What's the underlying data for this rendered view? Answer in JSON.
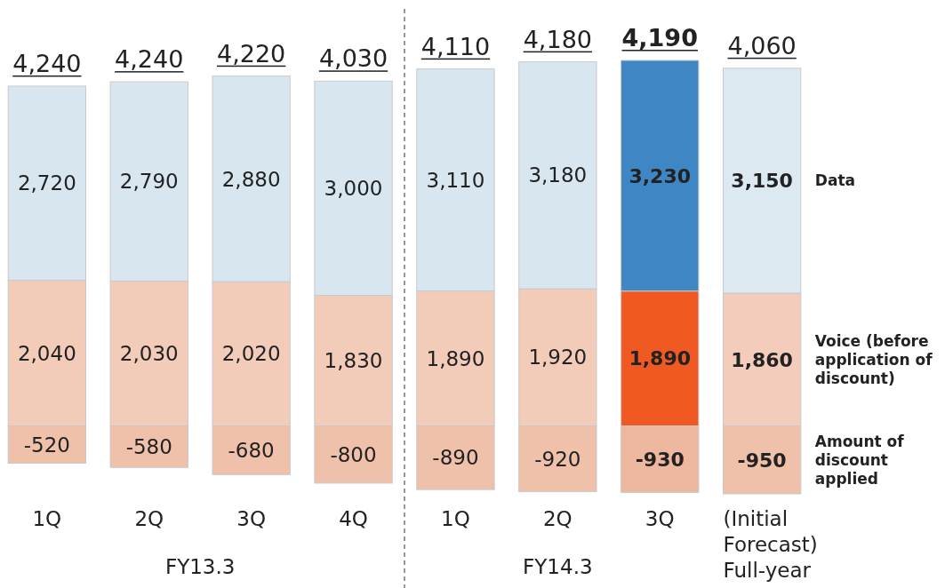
{
  "chart_data": {
    "type": "bar",
    "stacked": true,
    "legend": "right",
    "categories": [
      "1Q",
      "2Q",
      "3Q",
      "4Q",
      "1Q",
      "2Q",
      "3Q",
      "(Initial Forecast) Full-year"
    ],
    "series": [
      {
        "name": "Voice (before application of discount)",
        "colors": [
          "#f3cbb9",
          "#f3cbb9",
          "#f3cbb9",
          "#f3cbb9",
          "#f3cbb9",
          "#f3cbb9",
          "#f05a22",
          "#f4ccbb"
        ],
        "values": [
          2040,
          2030,
          2020,
          1830,
          1890,
          1920,
          1890,
          1860
        ],
        "value_labels": [
          "2,040",
          "2,030",
          "2,020",
          "1,830",
          "1,890",
          "1,920",
          "1,890",
          "1,860"
        ]
      },
      {
        "name": "Data",
        "colors": [
          "#d8e7ef",
          "#d8e7ef",
          "#d8e7ef",
          "#d8e7ef",
          "#d8e7ef",
          "#d8e7ef",
          "#3e86c4",
          "#dde9f1"
        ],
        "values": [
          2720,
          2790,
          2880,
          3000,
          3110,
          3180,
          3230,
          3150
        ],
        "value_labels": [
          "2,720",
          "2,790",
          "2,880",
          "3,000",
          "3,110",
          "3,180",
          "3,230",
          "3,150"
        ]
      },
      {
        "name": "Amount of discount applied",
        "colors": [
          "#efc0aa",
          "#efc0aa",
          "#efc0aa",
          "#efc0aa",
          "#efc0aa",
          "#efc0aa",
          "#eeb79f",
          "#efc1ab"
        ],
        "values": [
          -520,
          -580,
          -680,
          -800,
          -890,
          -920,
          -930,
          -950
        ],
        "value_labels": [
          "-520",
          "-580",
          "-680",
          "-800",
          "-890",
          "-920",
          "-930",
          "-950"
        ]
      }
    ],
    "totals": [
      "4,240",
      "4,240",
      "4,220",
      "4,030",
      "4,110",
      "4,180",
      "4,190",
      "4,060"
    ],
    "annotations": [
      "FY13.3",
      "FY14.3"
    ]
  }
}
